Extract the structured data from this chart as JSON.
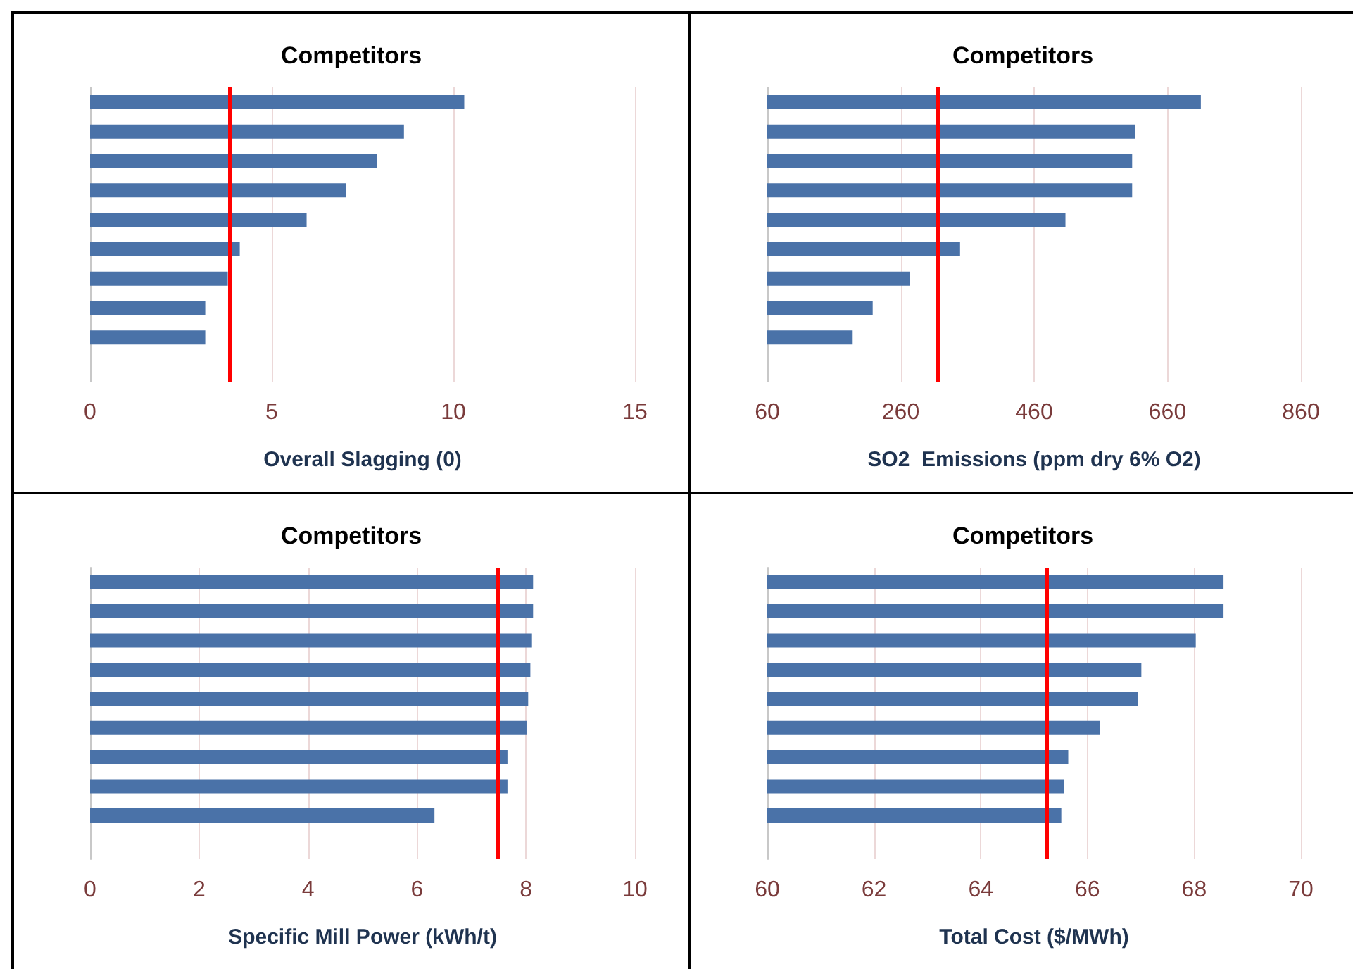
{
  "chart_data": [
    {
      "type": "bar",
      "orientation": "horizontal",
      "title": "Competitors",
      "xlabel": "Overall Slagging (0)",
      "categories": [
        null,
        null,
        null,
        null,
        null,
        null,
        null,
        null,
        null,
        null
      ],
      "color": "#4a72a8",
      "values": [
        10.3,
        8.64,
        7.9,
        7.04,
        5.96,
        4.12,
        3.79,
        3.17,
        3.17,
        null
      ],
      "xlim": [
        0,
        15
      ],
      "xticks": [
        0,
        5,
        10,
        15
      ],
      "grid": "x",
      "tick_labels": "x",
      "ref_lines": [
        {
          "axis": "x",
          "value": 3.85,
          "color": "#ff0000"
        }
      ]
    },
    {
      "type": "bar",
      "orientation": "horizontal",
      "title": "Competitors",
      "xlabel": "SO2  Emissions (ppm dry 6% O2)",
      "categories": [
        null,
        null,
        null,
        null,
        null,
        null,
        null,
        null,
        null,
        null
      ],
      "color": "#4a72a8",
      "values": [
        710,
        611,
        607,
        607,
        507,
        349,
        274,
        218,
        188,
        null
      ],
      "xlim": [
        60,
        860
      ],
      "xticks": [
        60,
        260,
        460,
        660,
        860
      ],
      "grid": "x",
      "tick_labels": "x",
      "ref_lines": [
        {
          "axis": "x",
          "value": 315,
          "color": "#ff0000"
        }
      ]
    },
    {
      "type": "bar",
      "orientation": "horizontal",
      "title": "Competitors",
      "xlabel": "Specific Mill Power (kWh/t)",
      "categories": [
        null,
        null,
        null,
        null,
        null,
        null,
        null,
        null,
        null,
        null
      ],
      "color": "#4a72a8",
      "values": [
        8.13,
        8.13,
        8.11,
        8.08,
        8.04,
        8.01,
        7.66,
        7.66,
        6.32,
        null
      ],
      "xlim": [
        0,
        10
      ],
      "xticks": [
        0,
        2,
        4,
        6,
        8,
        10
      ],
      "grid": "x",
      "tick_labels": "x",
      "ref_lines": [
        {
          "axis": "x",
          "value": 7.48,
          "color": "#ff0000"
        }
      ]
    },
    {
      "type": "bar",
      "orientation": "horizontal",
      "title": "Competitors",
      "xlabel": "Total Cost ($/MWh)",
      "categories": [
        null,
        null,
        null,
        null,
        null,
        null,
        null,
        null,
        null,
        null
      ],
      "color": "#4a72a8",
      "values": [
        68.55,
        68.55,
        68.03,
        67.01,
        66.94,
        66.24,
        65.64,
        65.56,
        65.51,
        null
      ],
      "xlim": [
        60,
        70
      ],
      "xticks": [
        60,
        62,
        64,
        66,
        68,
        70
      ],
      "grid": "x",
      "tick_labels": "x",
      "ref_lines": [
        {
          "axis": "x",
          "value": 65.24,
          "color": "#ff0000"
        }
      ]
    }
  ]
}
